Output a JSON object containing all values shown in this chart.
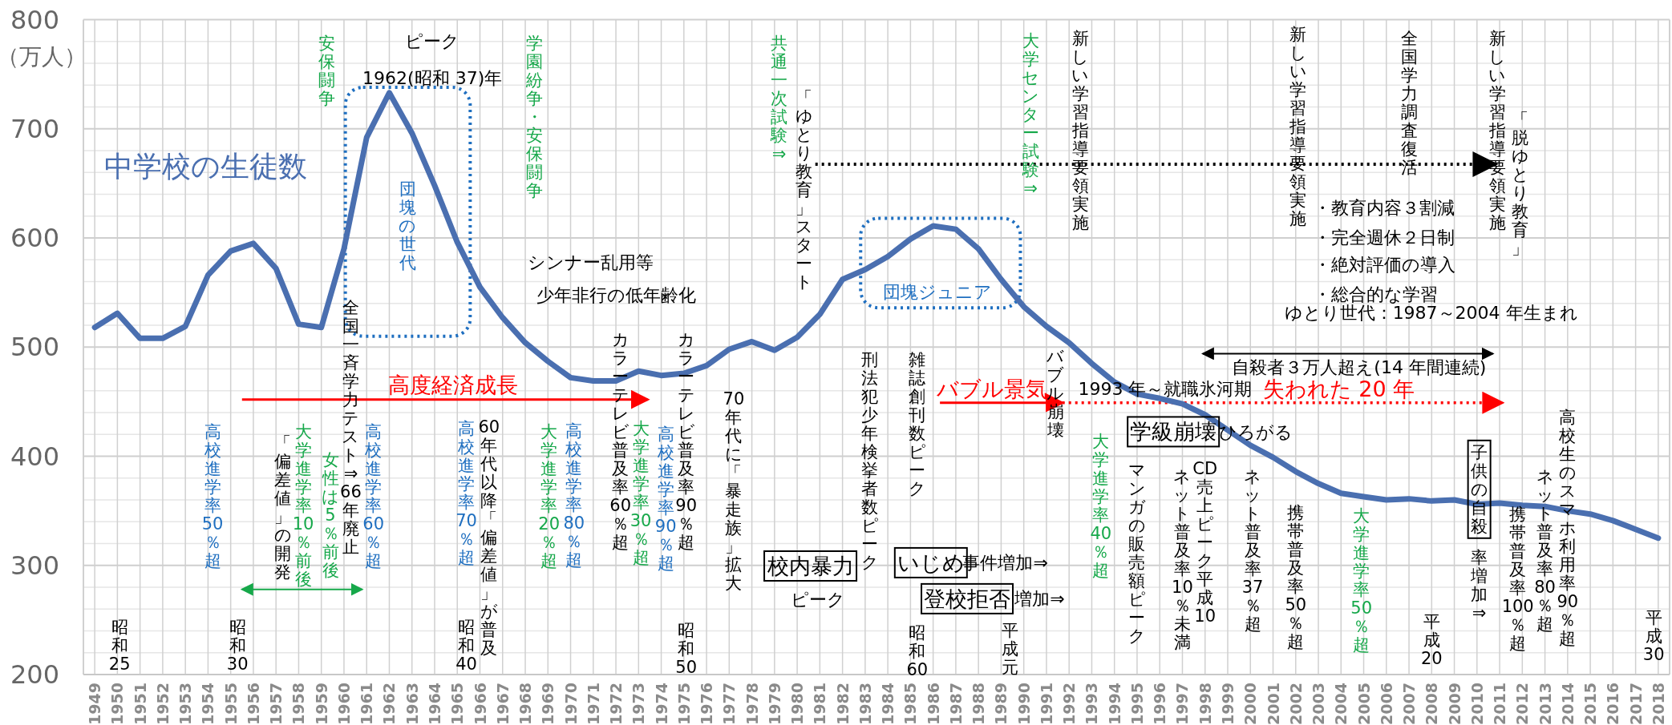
{
  "chart_data": {
    "type": "line",
    "ylabel": "（万人）",
    "x": [
      1949,
      1950,
      1951,
      1952,
      1953,
      1954,
      1955,
      1956,
      1957,
      1958,
      1959,
      1960,
      1961,
      1962,
      1963,
      1964,
      1965,
      1966,
      1967,
      1968,
      1969,
      1970,
      1971,
      1972,
      1973,
      1974,
      1975,
      1976,
      1977,
      1978,
      1979,
      1980,
      1981,
      1982,
      1983,
      1984,
      1985,
      1986,
      1987,
      1988,
      1989,
      1990,
      1991,
      1992,
      1993,
      1994,
      1995,
      1996,
      1997,
      1998,
      1999,
      2000,
      2001,
      2002,
      2003,
      2004,
      2005,
      2006,
      2007,
      2008,
      2009,
      2010,
      2011,
      2012,
      2013,
      2014,
      2015,
      2016,
      2017,
      2018
    ],
    "series": [
      {
        "name": "中学校の生徒数",
        "color": "#4a6fb0",
        "values": [
          518,
          531,
          508,
          508,
          519,
          566,
          588,
          595,
          572,
          521,
          518,
          590,
          692,
          733,
          696,
          648,
          596,
          555,
          527,
          504,
          487,
          472,
          469,
          469,
          478,
          474,
          476,
          483,
          498,
          505,
          497,
          509,
          530,
          562,
          571,
          583,
          599,
          611,
          608,
          590,
          562,
          537,
          519,
          504,
          485,
          468,
          457,
          453,
          448,
          438,
          424,
          410,
          399,
          386,
          375,
          366,
          363,
          360,
          361,
          359,
          360,
          356,
          357,
          355,
          354,
          350,
          347,
          341,
          333,
          325
        ]
      }
    ],
    "xlim": [
      1948.5,
      2018.5
    ],
    "xticks": [
      1949,
      1950,
      1951,
      1952,
      1953,
      1954,
      1955,
      1956,
      1957,
      1958,
      1959,
      1960,
      1961,
      1962,
      1963,
      1964,
      1965,
      1966,
      1967,
      1968,
      1969,
      1970,
      1971,
      1972,
      1973,
      1974,
      1975,
      1976,
      1977,
      1978,
      1979,
      1980,
      1981,
      1982,
      1983,
      1984,
      1985,
      1986,
      1987,
      1988,
      1989,
      1990,
      1991,
      1992,
      1993,
      1994,
      1995,
      1996,
      1997,
      1998,
      1999,
      2000,
      2001,
      2002,
      2003,
      2004,
      2005,
      2006,
      2007,
      2008,
      2009,
      2010,
      2011,
      2012,
      2013,
      2014,
      2015,
      2016,
      2017,
      2018
    ],
    "ylim": [
      200,
      800
    ],
    "yticks": [
      200,
      300,
      400,
      500,
      600,
      700,
      800
    ],
    "grid": true,
    "annotations": [
      "安保闘争",
      "ピーク",
      "1962(昭和 37)年",
      "団塊の世代",
      "学園紛争・安保闘争",
      "シンナー乱用等",
      "少年非行の低年齢化",
      "共通一次試験⇒",
      "「ゆとり教育」スタート",
      "団塊ジュニア",
      "大学センター試験⇒",
      "新しい学習指導要領実施",
      "新しい学習指導要領実施",
      "全国学力調査復活",
      "新しい学習指導要領実施",
      "「脱ゆとり教育」",
      "・教育内容３割減",
      "・完全週休２日制",
      "・絶対評価の導入",
      "・総合的な学習",
      "ゆとり世代：1987～2004 年生まれ",
      "自殺者３万人超え(14 年間連続)",
      "高度経済成長",
      "高校進学率50％超",
      "「偏差値」の開発",
      "大学進学率10％前後",
      "女性は5％前後",
      "全国一斉学力テスト⇒66年廃止",
      "高校進学率60％超",
      "昭和25",
      "昭和30",
      "高校進学率70％超",
      "60年代以降「偏差値」が普及",
      "昭和40",
      "大学進学率20％超",
      "高校進学率80％超",
      "カラーテレビ普及率60％超",
      "大学進学率30％超",
      "高校進学率90％超",
      "カラーテレビ普及率90％超",
      "昭和50",
      "70年代に「暴走族」拡大",
      "校内暴力",
      "ピーク",
      "刑法犯少年検挙者数ピーク",
      "雑誌創刊数ピーク",
      "昭和60",
      "いじめ",
      "事件増加⇒",
      "登校拒否",
      "増加⇒",
      "平成元",
      "バブル景気",
      "バブル崩壊",
      "大学進学率40％超",
      "1993 年～就職氷河期",
      "失われた 20 年",
      "学級崩壊",
      "ひろがる",
      "マンガの販売額ピーク",
      "ネット普及率10％未満",
      "CD売上ピーク平成10",
      "ネット普及率37％超",
      "携帯普及率50％超",
      "大学進学率50％超",
      "平成20",
      "子供の自殺",
      "率増加⇒",
      "携帯普及率100％超",
      "ネット普及率80％超",
      "高校生のスマホ利用率90％超",
      "平成30"
    ]
  }
}
